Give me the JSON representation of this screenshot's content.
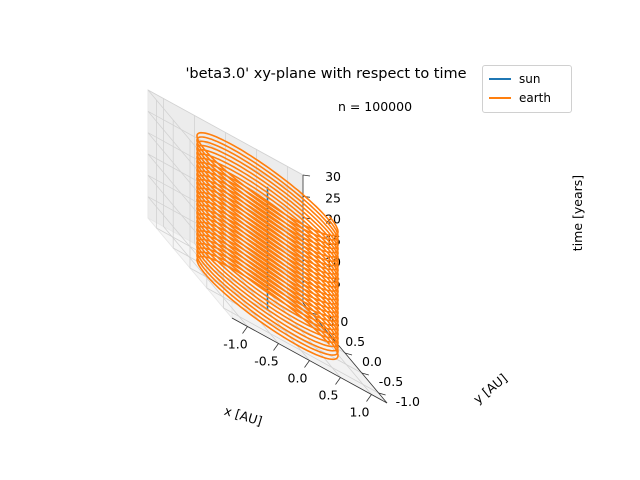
{
  "chart_data": {
    "type": "line",
    "projection": "3d",
    "title": "'beta3.0' xy-plane with respect to time",
    "annotation": "n = 100000",
    "xlabel": "x [AU]",
    "ylabel": "y [AU]",
    "zlabel": "time [years]",
    "xlim": [
      -1.25,
      1.25
    ],
    "ylim": [
      -1.25,
      1.25
    ],
    "zlim": [
      0,
      30
    ],
    "x_ticks": [
      "-1.0",
      "-0.5",
      "0.0",
      "0.5",
      "1.0"
    ],
    "y_ticks": [
      "-1.0",
      "-0.5",
      "0.0",
      "0.5",
      "1.0"
    ],
    "z_ticks": [
      "5",
      "10",
      "15",
      "20",
      "25",
      "30"
    ],
    "grid": true,
    "legend_position": "top-right",
    "series": [
      {
        "name": "sun",
        "color": "#1f77b4",
        "x": [
          0,
          0
        ],
        "y": [
          0,
          0
        ],
        "time": [
          0,
          29
        ]
      },
      {
        "name": "earth",
        "color": "#ff7f0e",
        "shape": "circular orbit",
        "radius": 1.0,
        "time_range": [
          0,
          30
        ],
        "revolutions": 30
      }
    ]
  }
}
